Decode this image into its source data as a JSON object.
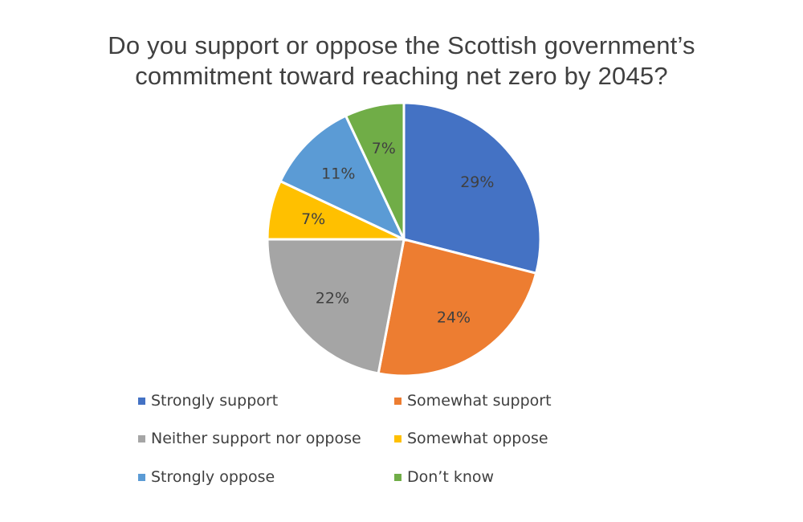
{
  "chart_data": {
    "type": "pie",
    "title": "Do you support or oppose the Scottish government’s commitment toward reaching net zero by 2045?",
    "title_lines": [
      "Do you support or oppose the Scottish government’s",
      "commitment toward reaching net zero by 2045?"
    ],
    "categories": [
      "Strongly support",
      "Somewhat support",
      "Neither support nor oppose",
      "Somewhat oppose",
      "Strongly oppose",
      "Don’t know"
    ],
    "values": [
      29,
      24,
      22,
      7,
      11,
      7
    ],
    "data_labels": [
      "29%",
      "24%",
      "22%",
      "7%",
      "11%",
      "7%"
    ],
    "colors": [
      "#4472C4",
      "#ED7D31",
      "#A5A5A5",
      "#FFC000",
      "#5B9BD5",
      "#70AD47"
    ],
    "legend_position": "bottom",
    "start_angle": "12 o'clock",
    "direction": "clockwise"
  }
}
